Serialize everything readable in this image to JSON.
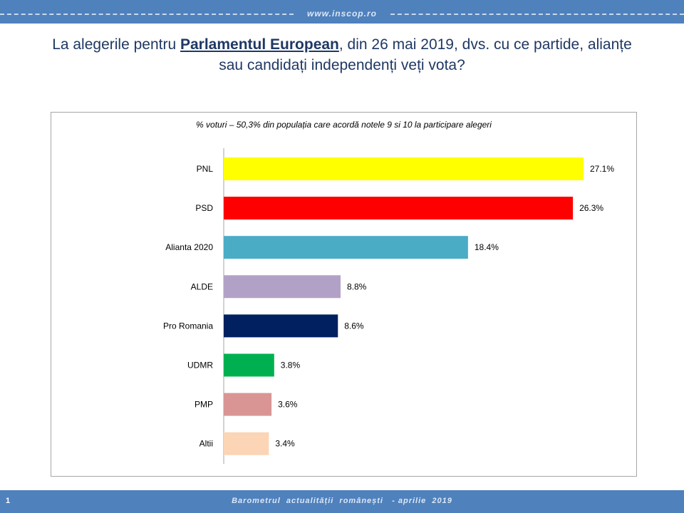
{
  "header": {
    "site": "www.inscop.ro"
  },
  "title": {
    "part1": "La alegerile pentru ",
    "emphasis": "Parlamentul European",
    "part2": ", din 26 mai 2019, dvs. cu ce partide, alianțe",
    "line2": "sau candidați independenți veți vota?"
  },
  "footer": {
    "page_number": "1",
    "text": "Barometrul  actualității  românești   - aprilie  2019"
  },
  "colors": {
    "header_bar": "#4f81bd",
    "title_text": "#1f3864"
  },
  "chart_data": {
    "type": "bar",
    "orientation": "horizontal",
    "subtitle": "% voturi  – 50,3% din populația care acordă notele 9 si 10 la participare alegeri",
    "categories": [
      "PNL",
      "PSD",
      "Alianta 2020",
      "ALDE",
      "Pro Romania",
      "UDMR",
      "PMP",
      "Altii"
    ],
    "values": [
      27.1,
      26.3,
      18.4,
      8.8,
      8.6,
      3.8,
      3.6,
      3.4
    ],
    "value_labels": [
      "27.1%",
      "26.3%",
      "18.4%",
      "8.8%",
      "8.6%",
      "3.8%",
      "3.6%",
      "3.4%"
    ],
    "bar_colors": [
      "#ffff00",
      "#ff0000",
      "#4bacc6",
      "#b2a1c7",
      "#002060",
      "#00b050",
      "#d99594",
      "#fbd5b5"
    ],
    "xlim": [
      0,
      27.1
    ],
    "grid": false,
    "legend": "none"
  }
}
